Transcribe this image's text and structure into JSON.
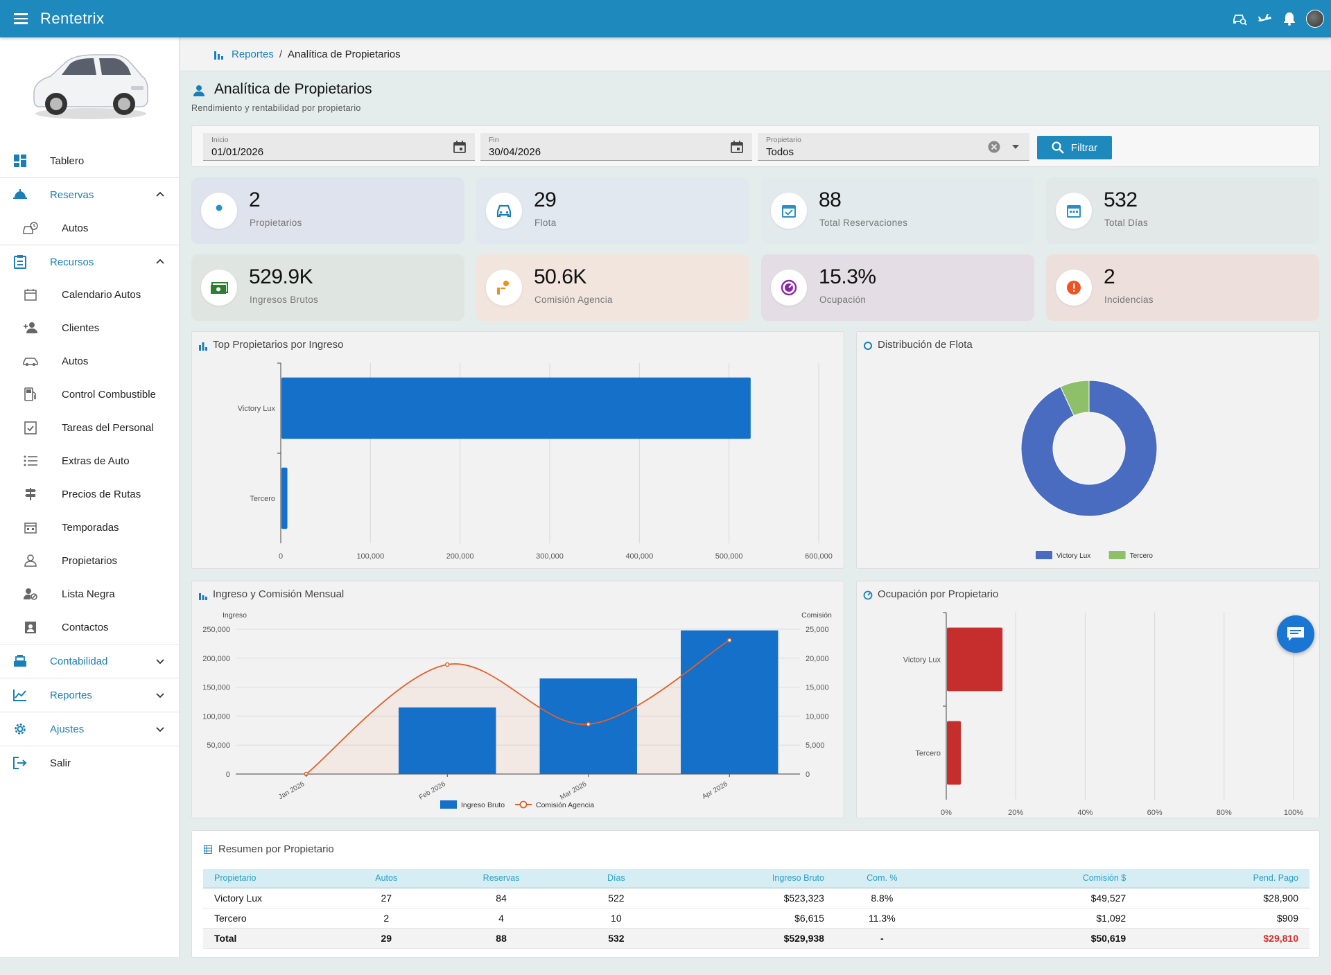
{
  "app": {
    "title": "Rentetrix"
  },
  "sidebar": {
    "items": [
      {
        "label": "Tablero"
      },
      {
        "label": "Reservas"
      },
      {
        "label": "Autos"
      },
      {
        "label": "Recursos"
      },
      {
        "label": "Calendario Autos"
      },
      {
        "label": "Clientes"
      },
      {
        "label": "Autos"
      },
      {
        "label": "Control Combustible"
      },
      {
        "label": "Tareas del Personal"
      },
      {
        "label": "Extras de Auto"
      },
      {
        "label": "Precios de Rutas"
      },
      {
        "label": "Temporadas"
      },
      {
        "label": "Propietarios"
      },
      {
        "label": "Lista Negra"
      },
      {
        "label": "Contactos"
      },
      {
        "label": "Contabilidad"
      },
      {
        "label": "Reportes"
      },
      {
        "label": "Ajustes"
      },
      {
        "label": "Salir"
      }
    ]
  },
  "breadcrumb": {
    "parent": "Reportes",
    "separator": "/",
    "current": "Analítica de Propietarios"
  },
  "page": {
    "title": "Analítica de Propietarios",
    "subtitle": "Rendimiento y rentabilidad por propietario"
  },
  "filters": {
    "start": {
      "label": "Inicio",
      "value": "01/01/2026"
    },
    "end": {
      "label": "Fin",
      "value": "30/04/2026"
    },
    "owner": {
      "label": "Propietario",
      "value": "Todos"
    },
    "button": "Filtrar"
  },
  "stats": [
    {
      "value": "2",
      "label": "Propietarios",
      "bg": "#dfe3ee",
      "color": "#2a8fc7"
    },
    {
      "value": "29",
      "label": "Flota",
      "bg": "#e2e8ef",
      "color": "#1e7fb6"
    },
    {
      "value": "88",
      "label": "Total Reservaciones",
      "bg": "#e3eaee",
      "color": "#2a8fc7"
    },
    {
      "value": "532",
      "label": "Total Días",
      "bg": "#e2e7e8",
      "color": "#2a8fc7"
    },
    {
      "value": "529.9K",
      "label": "Ingresos Brutos",
      "bg": "#dfe6e1",
      "color": "#2e7d32"
    },
    {
      "value": "50.6K",
      "label": "Comisión Agencia",
      "bg": "#f1e5de",
      "color": "#ef8f20"
    },
    {
      "value": "15.3%",
      "label": "Ocupación",
      "bg": "#e4dde6",
      "color": "#8e24aa"
    },
    {
      "value": "2",
      "label": "Incidencias",
      "bg": "#eddfdc",
      "color": "#f4511e"
    }
  ],
  "charts": {
    "top_owners": {
      "title": "Top Propietarios por Ingreso",
      "chart_data": {
        "type": "bar",
        "orientation": "horizontal",
        "categories": [
          "Victory Lux",
          "Tercero"
        ],
        "values": [
          523323,
          6615
        ],
        "xlim": [
          0,
          600000
        ],
        "ticks": [
          "0",
          "100,000",
          "200,000",
          "300,000",
          "400,000",
          "500,000",
          "600,000"
        ],
        "color": "#1470c8"
      }
    },
    "fleet_distribution": {
      "title": "Distribución de Flota",
      "chart_data": {
        "type": "pie",
        "style": "donut",
        "labels": [
          "Victory Lux",
          "Tercero"
        ],
        "values": [
          27,
          2
        ],
        "colors": [
          "#4a6cc0",
          "#8ec06a"
        ]
      }
    },
    "monthly": {
      "title": "Ingreso y Comisión Mensual",
      "chart_data": {
        "type": "bar",
        "categories": [
          "Jan 2026",
          "Feb 2026",
          "Mar 2026",
          "Apr 2026"
        ],
        "y_left_label": "Ingreso",
        "y_right_label": "Comisión",
        "y_left_ticks": [
          "0",
          "50,000",
          "100,000",
          "150,000",
          "200,000",
          "250,000"
        ],
        "y_right_ticks": [
          "0",
          "5,000",
          "10,000",
          "15,000",
          "20,000",
          "25,000"
        ],
        "ylim_left": [
          0,
          250000
        ],
        "ylim_right": [
          0,
          25000
        ],
        "series": [
          {
            "name": "Ingreso Bruto",
            "type": "bar",
            "axis": "left",
            "values": [
              0,
              115000,
              165000,
              248000
            ],
            "color": "#1470c8"
          },
          {
            "name": "Comisión Agencia",
            "type": "line",
            "axis": "right",
            "values": [
              0,
              18900,
              8600,
              23100
            ],
            "color": "#e1602a"
          }
        ]
      }
    },
    "occupancy": {
      "title": "Ocupación por Propietario",
      "chart_data": {
        "type": "bar",
        "orientation": "horizontal",
        "categories": [
          "Victory Lux",
          "Tercero"
        ],
        "values": [
          16,
          4
        ],
        "xlim": [
          0,
          100
        ],
        "ticks": [
          "0%",
          "20%",
          "40%",
          "60%",
          "80%",
          "100%"
        ],
        "color": "#c62e2e"
      }
    }
  },
  "summary": {
    "title": "Resumen por Propietario",
    "columns": [
      "Propietario",
      "Autos",
      "Reservas",
      "Días",
      "Ingreso Bruto",
      "Com. %",
      "Comisión $",
      "Pend. Pago"
    ],
    "rows": [
      [
        "Victory Lux",
        "27",
        "84",
        "522",
        "$523,323",
        "8.8%",
        "$49,527",
        "$28,900"
      ],
      [
        "Tercero",
        "2",
        "4",
        "10",
        "$6,615",
        "11.3%",
        "$1,092",
        "$909"
      ]
    ],
    "total": [
      "Total",
      "29",
      "88",
      "532",
      "$529,938",
      "-",
      "$50,619",
      "$29,810"
    ]
  }
}
